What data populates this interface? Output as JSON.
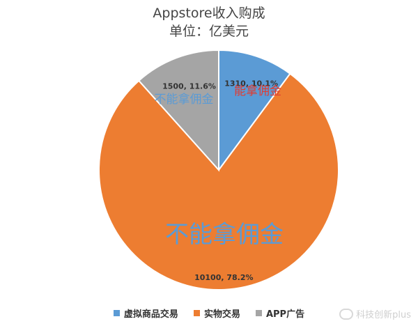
{
  "chart_data": {
    "type": "pie",
    "title": "Appstore收入购成",
    "subtitle": "单位：亿美元",
    "categories": [
      "虚拟商品交易",
      "实物交易",
      "APP广告"
    ],
    "values": [
      1310,
      10100,
      1500
    ],
    "percentages": [
      "10.1%",
      "78.2%",
      "11.6%"
    ],
    "data_labels": [
      "1310, 10.1%",
      "10100, 78.2%",
      "1500, 11.6%"
    ],
    "colors": [
      "#5B9BD5",
      "#ED7D31",
      "#A5A5A5"
    ],
    "legend_position": "bottom",
    "annotations": [
      {
        "text": "能拿佣金",
        "color": "#E03C31"
      },
      {
        "text": "不能拿佣金",
        "color": "#5B9BD5"
      },
      {
        "text": "不能拿佣金",
        "color": "#5B9BD5"
      }
    ]
  },
  "watermark": {
    "text": "科技创新plus"
  }
}
